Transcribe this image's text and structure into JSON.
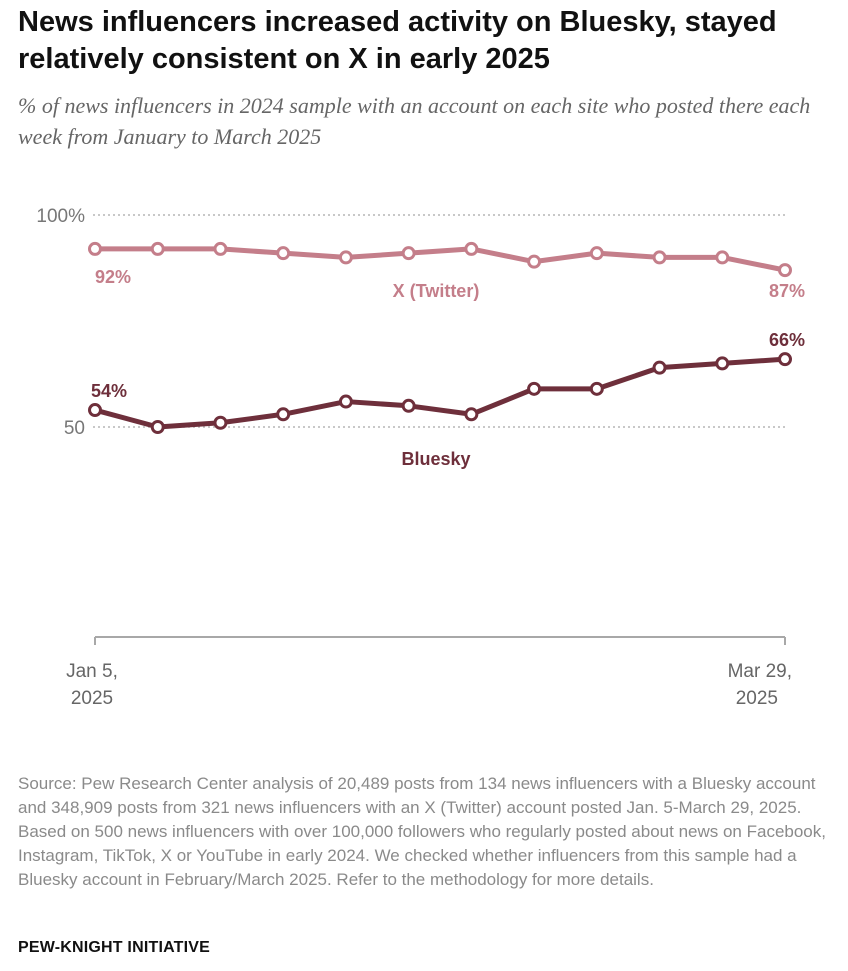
{
  "title": "News influencers increased activity on Bluesky, stayed relatively consistent on X in early 2025",
  "subtitle": "% of news influencers in 2024 sample with an account on each site who posted there each week from January to March 2025",
  "chart_data": {
    "type": "line",
    "x_count": 12,
    "x_start_label": [
      "Jan 5,",
      "2025"
    ],
    "x_end_label": [
      "Mar 29,",
      "2025"
    ],
    "ylim": [
      0,
      100
    ],
    "y_ticks": [
      {
        "value": 100,
        "label": "100%"
      },
      {
        "value": 50,
        "label": "50"
      }
    ],
    "series": [
      {
        "name": "X (Twitter)",
        "color": "#c47e8a",
        "values": [
          92,
          92,
          92,
          91,
          90,
          91,
          92,
          89,
          91,
          90,
          90,
          87
        ],
        "start_label": "92%",
        "end_label": "87%"
      },
      {
        "name": "Bluesky",
        "color": "#6e2f3b",
        "values": [
          54,
          50,
          51,
          53,
          56,
          55,
          53,
          59,
          59,
          64,
          65,
          66
        ],
        "start_label": "54%",
        "end_label": "66%"
      }
    ]
  },
  "source": "Source: Pew Research Center analysis of 20,489 posts from 134 news influencers with a Bluesky account and 348,909 posts from 321 news influencers with an X (Twitter) account posted Jan. 5-March 29, 2025. Based on 500 news influencers with over 100,000 followers who regularly posted about news on Facebook, Instagram, TikTok, X or YouTube in early 2024. We checked whether influencers from this sample had a Bluesky account in February/March 2025. Refer to the methodology for more details.",
  "credit": "PEW-KNIGHT INITIATIVE"
}
